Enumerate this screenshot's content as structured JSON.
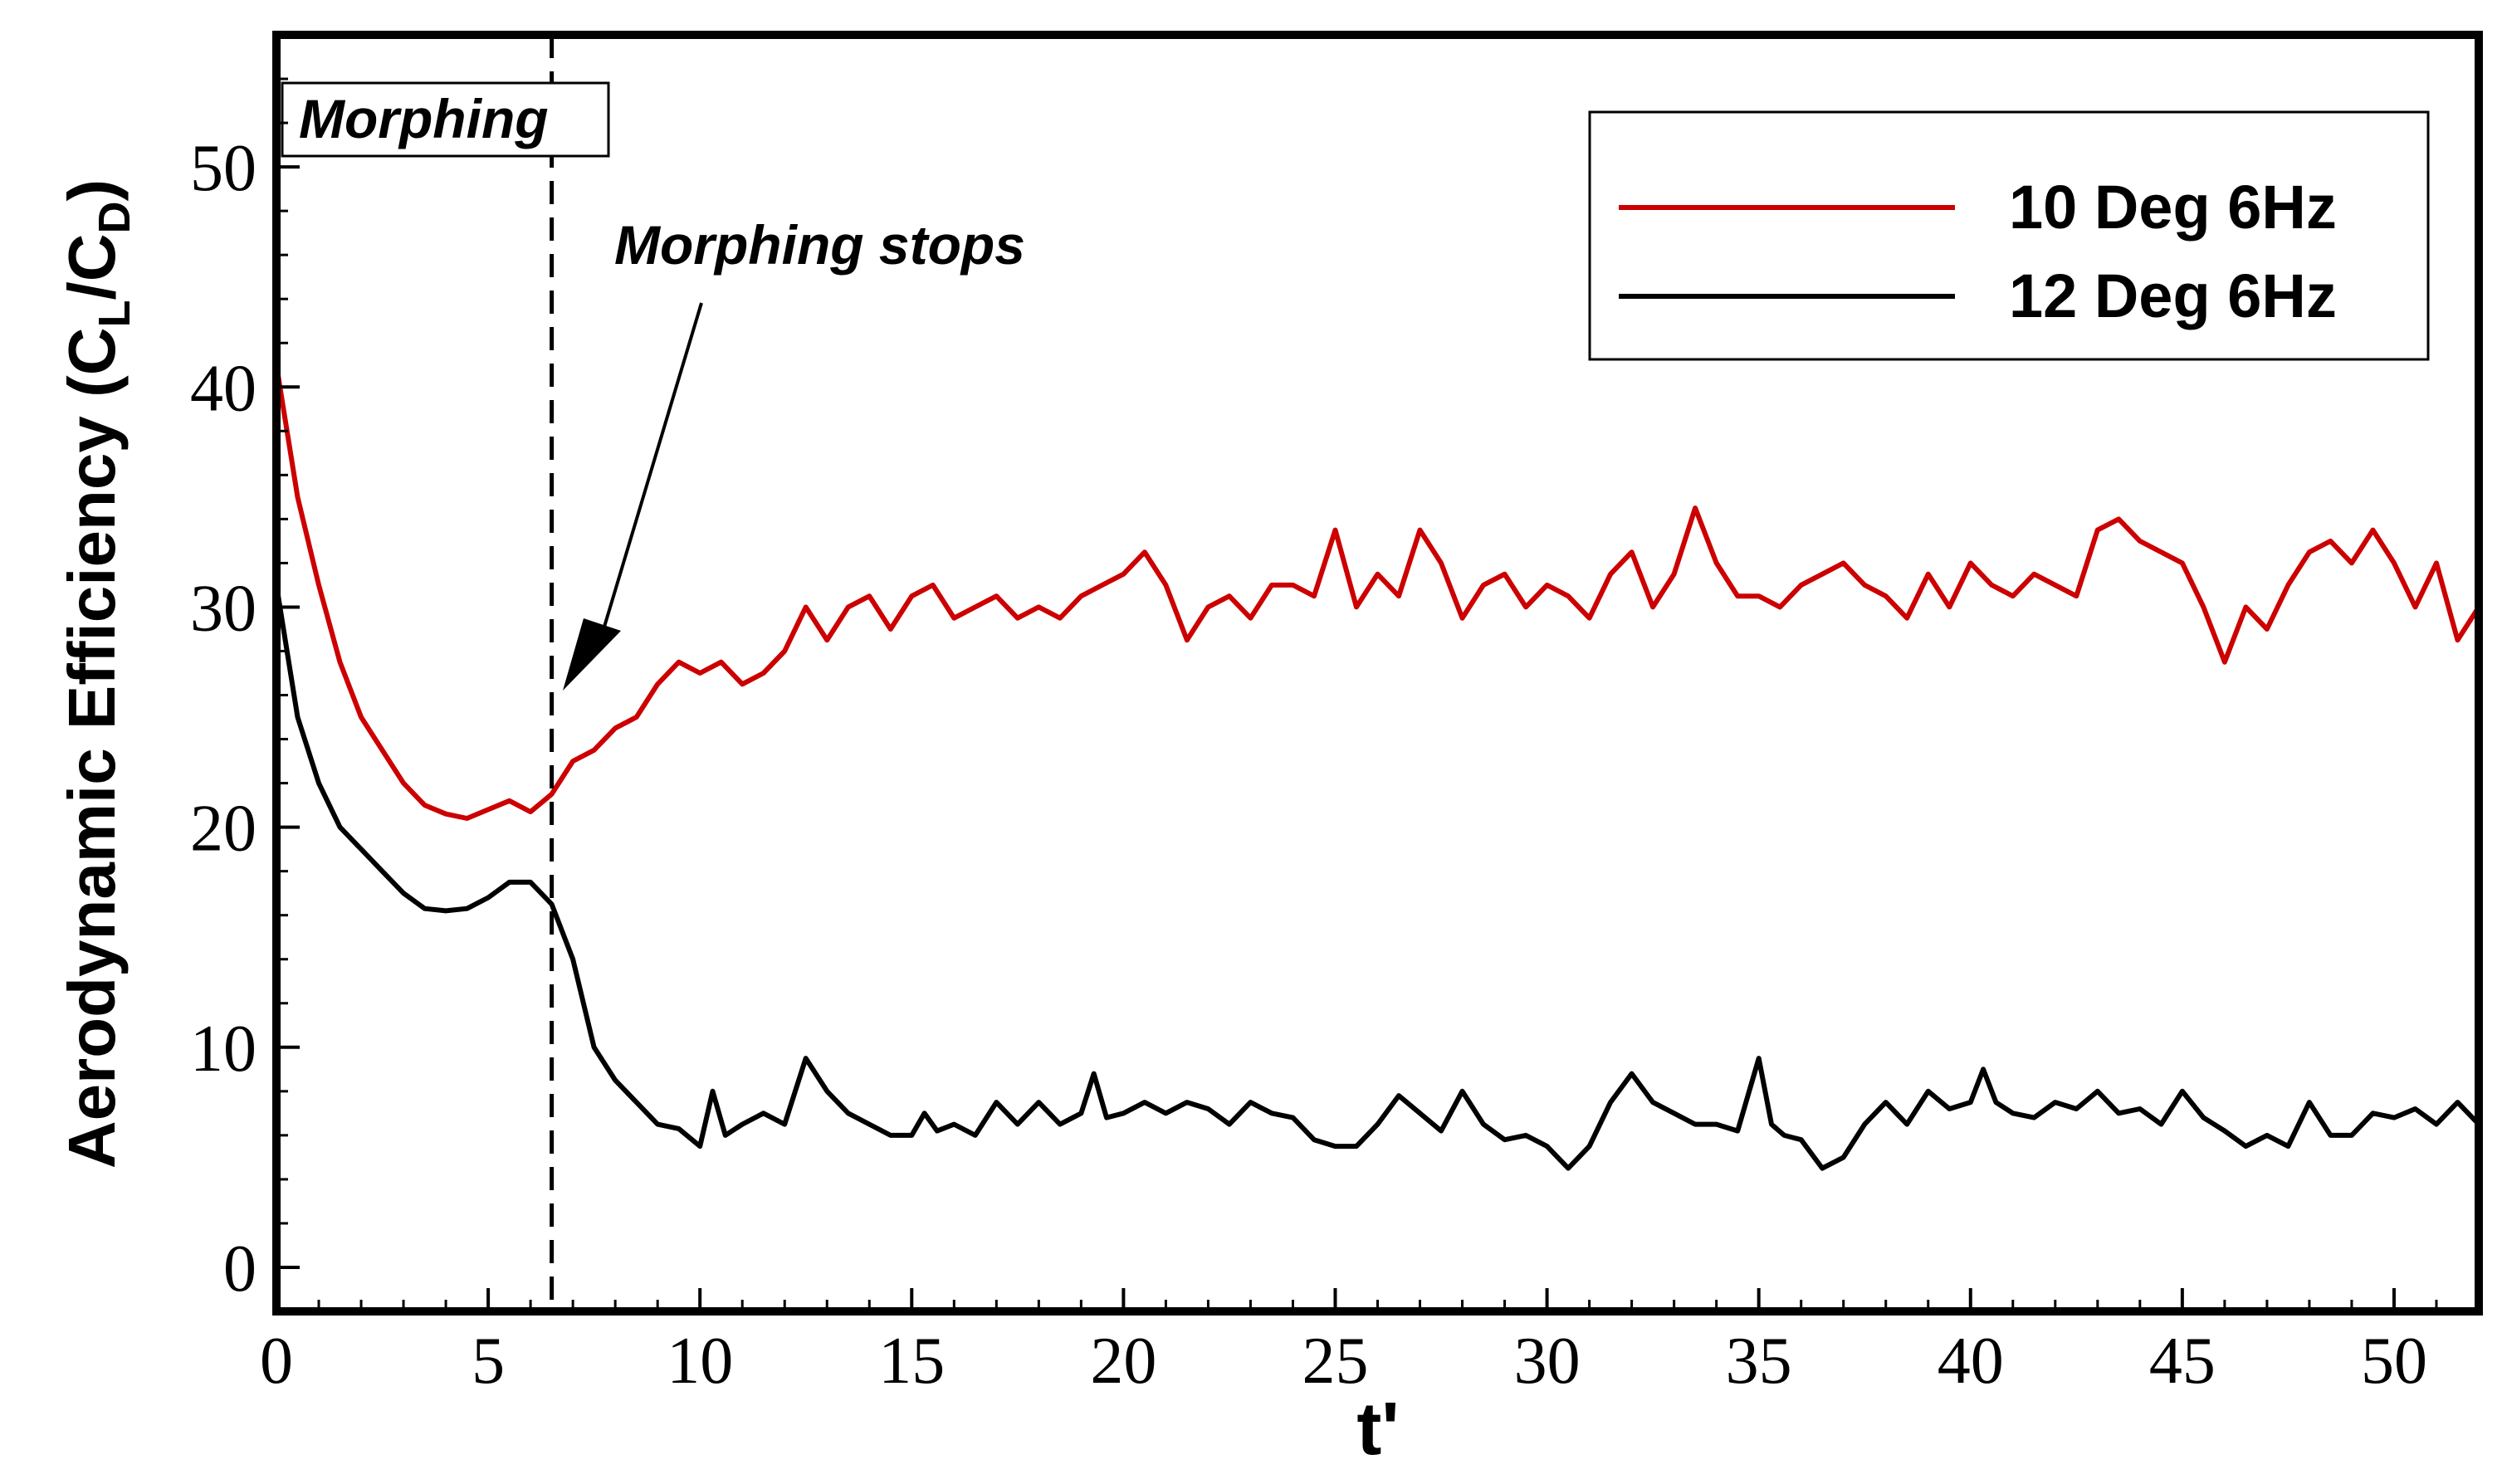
{
  "chart_data": {
    "type": "line",
    "xlabel": "t'",
    "ylabel": "Aerodynamic Efficiency (C",
    "ylabel_sub_L": "L",
    "ylabel_mid": "/C",
    "ylabel_sub_D": "D",
    "ylabel_end": ")",
    "xlim": [
      0,
      52
    ],
    "ylim": [
      -2,
      56
    ],
    "xticks": [
      0,
      5,
      10,
      15,
      20,
      25,
      30,
      35,
      40,
      45,
      50
    ],
    "yticks": [
      0,
      10,
      20,
      30,
      40,
      50
    ],
    "xtick_labels": [
      "0",
      "5",
      "10",
      "15",
      "20",
      "25",
      "30",
      "35",
      "40",
      "45",
      "50"
    ],
    "ytick_labels": [
      "0",
      "10",
      "20",
      "30",
      "40",
      "50"
    ],
    "legend_position": "top-right",
    "grid": false,
    "annotations": {
      "morphing_region_label": "Morphing",
      "morphing_stop_label": "Morphing stops",
      "morphing_stop_x": 6.5
    },
    "series": [
      {
        "name": "10 Deg 6Hz",
        "color": "#cc0000",
        "points": [
          [
            0,
            41
          ],
          [
            0.5,
            35
          ],
          [
            1,
            31
          ],
          [
            1.5,
            27.5
          ],
          [
            2,
            25
          ],
          [
            2.5,
            23.5
          ],
          [
            3,
            22
          ],
          [
            3.5,
            21
          ],
          [
            4,
            20.6
          ],
          [
            4.5,
            20.4
          ],
          [
            5,
            20.8
          ],
          [
            5.5,
            21.2
          ],
          [
            6,
            20.7
          ],
          [
            6.5,
            21.5
          ],
          [
            7,
            23
          ],
          [
            7.5,
            23.5
          ],
          [
            8,
            24.5
          ],
          [
            8.5,
            25
          ],
          [
            9,
            26.5
          ],
          [
            9.5,
            27.5
          ],
          [
            10,
            27
          ],
          [
            10.5,
            27.5
          ],
          [
            11,
            26.5
          ],
          [
            11.5,
            27
          ],
          [
            12,
            28
          ],
          [
            12.5,
            30
          ],
          [
            13,
            28.5
          ],
          [
            13.5,
            30
          ],
          [
            14,
            30.5
          ],
          [
            14.5,
            29
          ],
          [
            15,
            30.5
          ],
          [
            15.5,
            31
          ],
          [
            16,
            29.5
          ],
          [
            16.5,
            30
          ],
          [
            17,
            30.5
          ],
          [
            17.5,
            29.5
          ],
          [
            18,
            30
          ],
          [
            18.5,
            29.5
          ],
          [
            19,
            30.5
          ],
          [
            19.5,
            31
          ],
          [
            20,
            31.5
          ],
          [
            20.5,
            32.5
          ],
          [
            21,
            31
          ],
          [
            21.5,
            28.5
          ],
          [
            22,
            30
          ],
          [
            22.5,
            30.5
          ],
          [
            23,
            29.5
          ],
          [
            23.5,
            31
          ],
          [
            24,
            31
          ],
          [
            24.5,
            30.5
          ],
          [
            25,
            33.5
          ],
          [
            25.5,
            30
          ],
          [
            26,
            31.5
          ],
          [
            26.5,
            30.5
          ],
          [
            27,
            33.5
          ],
          [
            27.5,
            32
          ],
          [
            28,
            29.5
          ],
          [
            28.5,
            31
          ],
          [
            29,
            31.5
          ],
          [
            29.5,
            30
          ],
          [
            30,
            31
          ],
          [
            30.5,
            30.5
          ],
          [
            31,
            29.5
          ],
          [
            31.5,
            31.5
          ],
          [
            32,
            32.5
          ],
          [
            32.5,
            30
          ],
          [
            33,
            31.5
          ],
          [
            33.5,
            34.5
          ],
          [
            34,
            32
          ],
          [
            34.5,
            30.5
          ],
          [
            35,
            30.5
          ],
          [
            35.5,
            30
          ],
          [
            36,
            31
          ],
          [
            36.5,
            31.5
          ],
          [
            37,
            32
          ],
          [
            37.5,
            31
          ],
          [
            38,
            30.5
          ],
          [
            38.5,
            29.5
          ],
          [
            39,
            31.5
          ],
          [
            39.5,
            30
          ],
          [
            40,
            32
          ],
          [
            40.5,
            31
          ],
          [
            41,
            30.5
          ],
          [
            41.5,
            31.5
          ],
          [
            42,
            31
          ],
          [
            42.5,
            30.5
          ],
          [
            43,
            33.5
          ],
          [
            43.5,
            34
          ],
          [
            44,
            33
          ],
          [
            44.5,
            32.5
          ],
          [
            45,
            32
          ],
          [
            45.5,
            30
          ],
          [
            46,
            27.5
          ],
          [
            46.5,
            30
          ],
          [
            47,
            29
          ],
          [
            47.5,
            31
          ],
          [
            48,
            32.5
          ],
          [
            48.5,
            33
          ],
          [
            49,
            32
          ],
          [
            49.5,
            33.5
          ],
          [
            50,
            32
          ],
          [
            50.5,
            30
          ],
          [
            51,
            32
          ],
          [
            51.5,
            28.5
          ],
          [
            52,
            30
          ]
        ]
      },
      {
        "name": "12 Deg 6Hz",
        "color": "#000000",
        "points": [
          [
            0,
            31
          ],
          [
            0.5,
            25
          ],
          [
            1,
            22
          ],
          [
            1.5,
            20
          ],
          [
            2,
            19
          ],
          [
            2.5,
            18
          ],
          [
            3,
            17
          ],
          [
            3.5,
            16.3
          ],
          [
            4,
            16.2
          ],
          [
            4.5,
            16.3
          ],
          [
            5,
            16.8
          ],
          [
            5.5,
            17.5
          ],
          [
            6,
            17.5
          ],
          [
            6.5,
            16.5
          ],
          [
            7,
            14
          ],
          [
            7.5,
            10
          ],
          [
            8,
            8.5
          ],
          [
            8.5,
            7.5
          ],
          [
            9,
            6.5
          ],
          [
            9.5,
            6.3
          ],
          [
            10,
            5.5
          ],
          [
            10.3,
            8
          ],
          [
            10.6,
            6
          ],
          [
            11,
            6.5
          ],
          [
            11.5,
            7
          ],
          [
            12,
            6.5
          ],
          [
            12.5,
            9.5
          ],
          [
            13,
            8
          ],
          [
            13.5,
            7
          ],
          [
            14,
            6.5
          ],
          [
            14.5,
            6
          ],
          [
            15,
            6
          ],
          [
            15.3,
            7
          ],
          [
            15.6,
            6.2
          ],
          [
            16,
            6.5
          ],
          [
            16.5,
            6
          ],
          [
            17,
            7.5
          ],
          [
            17.5,
            6.5
          ],
          [
            18,
            7.5
          ],
          [
            18.5,
            6.5
          ],
          [
            19,
            7
          ],
          [
            19.3,
            8.8
          ],
          [
            19.6,
            6.8
          ],
          [
            20,
            7
          ],
          [
            20.5,
            7.5
          ],
          [
            21,
            7
          ],
          [
            21.5,
            7.5
          ],
          [
            22,
            7.2
          ],
          [
            22.5,
            6.5
          ],
          [
            23,
            7.5
          ],
          [
            23.5,
            7
          ],
          [
            24,
            6.8
          ],
          [
            24.5,
            5.8
          ],
          [
            25,
            5.5
          ],
          [
            25.5,
            5.5
          ],
          [
            26,
            6.5
          ],
          [
            26.5,
            7.8
          ],
          [
            27,
            7
          ],
          [
            27.5,
            6.2
          ],
          [
            28,
            8
          ],
          [
            28.5,
            6.5
          ],
          [
            29,
            5.8
          ],
          [
            29.5,
            6
          ],
          [
            30,
            5.5
          ],
          [
            30.5,
            4.5
          ],
          [
            31,
            5.5
          ],
          [
            31.5,
            7.5
          ],
          [
            32,
            8.8
          ],
          [
            32.5,
            7.5
          ],
          [
            33,
            7
          ],
          [
            33.5,
            6.5
          ],
          [
            34,
            6.5
          ],
          [
            34.5,
            6.2
          ],
          [
            35,
            9.5
          ],
          [
            35.3,
            6.5
          ],
          [
            35.6,
            6
          ],
          [
            36,
            5.8
          ],
          [
            36.5,
            4.5
          ],
          [
            37,
            5
          ],
          [
            37.5,
            6.5
          ],
          [
            38,
            7.5
          ],
          [
            38.5,
            6.5
          ],
          [
            39,
            8
          ],
          [
            39.5,
            7.2
          ],
          [
            40,
            7.5
          ],
          [
            40.3,
            9
          ],
          [
            40.6,
            7.5
          ],
          [
            41,
            7
          ],
          [
            41.5,
            6.8
          ],
          [
            42,
            7.5
          ],
          [
            42.5,
            7.2
          ],
          [
            43,
            8
          ],
          [
            43.5,
            7
          ],
          [
            44,
            7.2
          ],
          [
            44.5,
            6.5
          ],
          [
            45,
            8
          ],
          [
            45.5,
            6.8
          ],
          [
            46,
            6.2
          ],
          [
            46.5,
            5.5
          ],
          [
            47,
            6
          ],
          [
            47.5,
            5.5
          ],
          [
            48,
            7.5
          ],
          [
            48.5,
            6
          ],
          [
            49,
            6
          ],
          [
            49.5,
            7
          ],
          [
            50,
            6.8
          ],
          [
            50.5,
            7.2
          ],
          [
            51,
            6.5
          ],
          [
            51.5,
            7.5
          ],
          [
            52,
            6.5
          ]
        ]
      }
    ]
  }
}
